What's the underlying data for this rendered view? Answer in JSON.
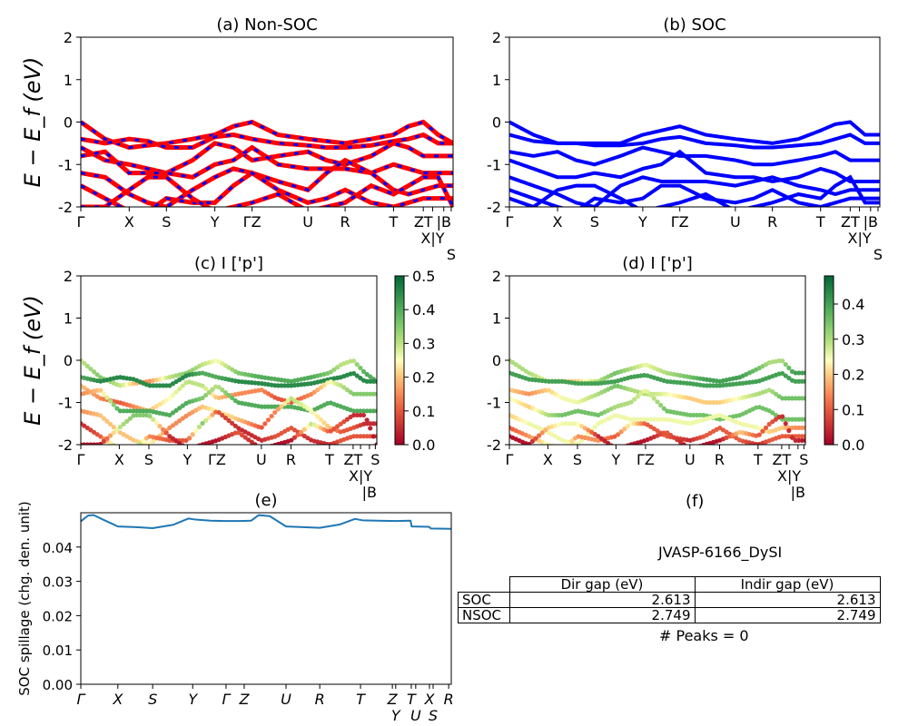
{
  "chart_data": [
    {
      "id": "a",
      "type": "line",
      "title": "(a) Non-SOC",
      "ylabel": "E − E_f (eV)",
      "ylim": [
        -2,
        2
      ],
      "yticks": [
        -2,
        -1,
        0,
        1,
        2
      ],
      "xticks": [
        {
          "k": 0,
          "label": "Γ"
        },
        {
          "k": 0.13,
          "label": "X"
        },
        {
          "k": 0.23,
          "label": "S"
        },
        {
          "k": 0.36,
          "label": "Y"
        },
        {
          "k": 0.46,
          "label": "ΓZ"
        },
        {
          "k": 0.61,
          "label": "U"
        },
        {
          "k": 0.71,
          "label": "R"
        },
        {
          "k": 0.84,
          "label": "T"
        },
        {
          "k": 0.92,
          "label": "ZT"
        },
        {
          "k": 0.945,
          "label": "X|Y"
        },
        {
          "k": 0.975,
          "label": "|B"
        },
        {
          "k": 0.995,
          "label": "S"
        }
      ],
      "colors": {
        "line": "#ff0000",
        "dash": "#0000ff"
      }
    },
    {
      "id": "b",
      "type": "line",
      "title": "(b) SOC",
      "ylim": [
        -2,
        2
      ],
      "yticks": [
        -2,
        -1,
        0,
        1,
        2
      ],
      "xticks": [
        {
          "k": 0,
          "label": "Γ"
        },
        {
          "k": 0.13,
          "label": "X"
        },
        {
          "k": 0.23,
          "label": "S"
        },
        {
          "k": 0.36,
          "label": "Y"
        },
        {
          "k": 0.46,
          "label": "ΓZ"
        },
        {
          "k": 0.61,
          "label": "U"
        },
        {
          "k": 0.71,
          "label": "R"
        },
        {
          "k": 0.84,
          "label": "T"
        },
        {
          "k": 0.92,
          "label": "ZT"
        },
        {
          "k": 0.945,
          "label": "X|Y"
        },
        {
          "k": 0.975,
          "label": "|B"
        },
        {
          "k": 0.995,
          "label": "S"
        }
      ],
      "colors": {
        "line": "#0000ff"
      }
    },
    {
      "id": "c",
      "type": "scatter",
      "title": "(c)  I ['p']",
      "ylabel": "E − E_f (eV)",
      "ylim": [
        -2,
        2
      ],
      "yticks": [
        -2,
        -1,
        0,
        1,
        2
      ],
      "colorbar": {
        "range": [
          0,
          0.5
        ],
        "ticks": [
          "0.0",
          "0.1",
          "0.2",
          "0.3",
          "0.4",
          "0.5"
        ],
        "colormap": "RdYlGn"
      },
      "xticks": [
        {
          "k": 0,
          "label": "Γ"
        },
        {
          "k": 0.13,
          "label": "X"
        },
        {
          "k": 0.23,
          "label": "S"
        },
        {
          "k": 0.36,
          "label": "Y"
        },
        {
          "k": 0.46,
          "label": "ΓZ"
        },
        {
          "k": 0.61,
          "label": "U"
        },
        {
          "k": 0.71,
          "label": "R"
        },
        {
          "k": 0.84,
          "label": "T"
        },
        {
          "k": 0.92,
          "label": "ZT"
        },
        {
          "k": 0.945,
          "label": "X|Y"
        },
        {
          "k": 0.975,
          "label": "|B"
        },
        {
          "k": 0.995,
          "label": "S"
        }
      ]
    },
    {
      "id": "d",
      "type": "scatter",
      "title": "(d) I ['p']",
      "ylim": [
        -2,
        2
      ],
      "yticks": [
        -2,
        -1,
        0,
        1,
        2
      ],
      "colorbar": {
        "range": [
          0,
          0.48
        ],
        "ticks": [
          "0.0",
          "0.1",
          "0.2",
          "0.3",
          "0.4"
        ],
        "colormap": "RdYlGn"
      },
      "xticks": [
        {
          "k": 0,
          "label": "Γ"
        },
        {
          "k": 0.13,
          "label": "X"
        },
        {
          "k": 0.23,
          "label": "S"
        },
        {
          "k": 0.36,
          "label": "Y"
        },
        {
          "k": 0.46,
          "label": "ΓZ"
        },
        {
          "k": 0.61,
          "label": "U"
        },
        {
          "k": 0.71,
          "label": "R"
        },
        {
          "k": 0.84,
          "label": "T"
        },
        {
          "k": 0.92,
          "label": "ZT"
        },
        {
          "k": 0.945,
          "label": "X|Y"
        },
        {
          "k": 0.975,
          "label": "|B"
        },
        {
          "k": 0.995,
          "label": "S"
        }
      ]
    },
    {
      "id": "e",
      "type": "line",
      "title": "(e)",
      "ylabel": "SOC spillage (chg. den. unit)",
      "ylim": [
        0,
        0.05
      ],
      "yticks": [
        "0.00",
        "0.01",
        "0.02",
        "0.03",
        "0.04"
      ],
      "xticks": [
        {
          "k": 0,
          "label": "Γ"
        },
        {
          "k": 0.1,
          "label": "X"
        },
        {
          "k": 0.194,
          "label": "S"
        },
        {
          "k": 0.302,
          "label": "Y"
        },
        {
          "k": 0.392,
          "label": "Γ"
        },
        {
          "k": 0.441,
          "label": "Z"
        },
        {
          "k": 0.554,
          "label": "U"
        },
        {
          "k": 0.645,
          "label": "R"
        },
        {
          "k": 0.755,
          "label": "T"
        },
        {
          "k": 0.841,
          "label": "Z"
        },
        {
          "k": 0.85,
          "label": "Y"
        },
        {
          "k": 0.892,
          "label": "T"
        },
        {
          "k": 0.904,
          "label": "U"
        },
        {
          "k": 0.941,
          "label": "X"
        },
        {
          "k": 0.951,
          "label": "S"
        },
        {
          "k": 0.993,
          "label": "R"
        }
      ],
      "x": [
        0,
        0.02,
        0.035,
        0.06,
        0.1,
        0.15,
        0.194,
        0.25,
        0.29,
        0.31,
        0.35,
        0.39,
        0.43,
        0.46,
        0.48,
        0.51,
        0.554,
        0.6,
        0.645,
        0.7,
        0.74,
        0.76,
        0.8,
        0.85,
        0.89,
        0.893,
        0.94,
        0.945,
        1
      ],
      "values": [
        0.0475,
        0.0492,
        0.0493,
        0.048,
        0.046,
        0.0458,
        0.0455,
        0.0465,
        0.0483,
        0.048,
        0.0477,
        0.0476,
        0.0476,
        0.0477,
        0.0493,
        0.049,
        0.046,
        0.0458,
        0.0456,
        0.0466,
        0.0482,
        0.0478,
        0.0477,
        0.0476,
        0.0477,
        0.046,
        0.0459,
        0.0454,
        0.0453
      ],
      "color": "#1f77b4"
    }
  ],
  "bands": {
    "k": [
      0,
      0.065,
      0.13,
      0.18,
      0.23,
      0.3,
      0.36,
      0.41,
      0.46,
      0.53,
      0.61,
      0.66,
      0.71,
      0.78,
      0.84,
      0.88,
      0.92,
      0.96,
      1
    ],
    "nsoc": [
      [
        0,
        -0.4,
        -0.6,
        -0.55,
        -0.5,
        -0.4,
        -0.3,
        -0.1,
        0,
        -0.3,
        -0.4,
        -0.45,
        -0.5,
        -0.4,
        -0.3,
        -0.1,
        0,
        -0.3,
        -0.5
      ],
      [
        -0.4,
        -0.5,
        -0.4,
        -0.45,
        -0.6,
        -0.6,
        -0.35,
        -0.3,
        -0.4,
        -0.5,
        -0.55,
        -0.6,
        -0.6,
        -0.55,
        -0.45,
        -0.4,
        -0.3,
        -0.5,
        -0.5
      ],
      [
        -0.6,
        -0.9,
        -1.0,
        -1.1,
        -1.2,
        -0.9,
        -0.5,
        -0.6,
        -0.9,
        -0.8,
        -0.7,
        -0.9,
        -1.0,
        -0.8,
        -0.5,
        -0.6,
        -0.8,
        -0.8,
        -0.8
      ],
      [
        -0.8,
        -0.7,
        -1.2,
        -1.2,
        -1.2,
        -1.3,
        -1.0,
        -0.9,
        -0.6,
        -1.0,
        -1.1,
        -1.1,
        -1.1,
        -1.2,
        -1.0,
        -1.1,
        -1.2,
        -1.2,
        -1.2
      ],
      [
        -1.2,
        -1.3,
        -1.7,
        -1.9,
        -2.0,
        -1.6,
        -1.3,
        -1.1,
        -1.2,
        -1.4,
        -1.6,
        -1.2,
        -0.9,
        -1.2,
        -1.6,
        -1.7,
        -1.6,
        -1.5,
        -1.5
      ],
      [
        -1.5,
        -1.8,
        -2.1,
        -2.1,
        -1.8,
        -1.9,
        -1.9,
        -1.5,
        -1.2,
        -1.6,
        -1.9,
        -1.8,
        -1.6,
        -1.9,
        -2.0,
        -1.9,
        -1.8,
        -1.8,
        -1.8
      ],
      [
        -2.0,
        -2.0,
        -1.6,
        -1.3,
        -1.3,
        -1.8,
        -2.1,
        -2.0,
        -1.9,
        -1.7,
        -2.1,
        -2.0,
        -1.9,
        -1.5,
        -1.7,
        -1.5,
        -1.3,
        -1.3,
        -2.0
      ]
    ],
    "soc": [
      [
        0,
        -0.3,
        -0.5,
        -0.5,
        -0.5,
        -0.5,
        -0.3,
        -0.2,
        -0.1,
        -0.3,
        -0.4,
        -0.45,
        -0.5,
        -0.4,
        -0.2,
        -0.05,
        0,
        -0.3,
        -0.3
      ],
      [
        -0.3,
        -0.45,
        -0.5,
        -0.5,
        -0.55,
        -0.55,
        -0.5,
        -0.4,
        -0.35,
        -0.5,
        -0.55,
        -0.6,
        -0.6,
        -0.55,
        -0.5,
        -0.4,
        -0.3,
        -0.5,
        -0.5
      ],
      [
        -0.7,
        -0.8,
        -0.7,
        -0.9,
        -1.0,
        -0.8,
        -0.6,
        -0.7,
        -0.8,
        -0.8,
        -0.9,
        -1.0,
        -1.0,
        -0.9,
        -0.8,
        -0.7,
        -0.9,
        -0.9,
        -0.9
      ],
      [
        -0.9,
        -1.1,
        -1.3,
        -1.3,
        -1.2,
        -1.3,
        -1.1,
        -1.0,
        -0.7,
        -1.2,
        -1.3,
        -1.3,
        -1.4,
        -1.3,
        -1.1,
        -1.2,
        -1.4,
        -1.4,
        -1.4
      ],
      [
        -1.3,
        -1.5,
        -1.7,
        -1.9,
        -2.0,
        -1.5,
        -1.3,
        -1.4,
        -1.4,
        -1.4,
        -1.5,
        -1.4,
        -1.3,
        -1.5,
        -1.6,
        -1.7,
        -1.6,
        -1.6,
        -1.6
      ],
      [
        -1.6,
        -1.8,
        -2.0,
        -2.1,
        -1.8,
        -1.9,
        -1.8,
        -1.5,
        -1.5,
        -1.8,
        -1.9,
        -1.8,
        -1.6,
        -1.9,
        -2.0,
        -1.9,
        -1.8,
        -1.8,
        -1.8
      ],
      [
        -1.8,
        -2.0,
        -1.6,
        -1.5,
        -1.5,
        -1.8,
        -2.1,
        -2.0,
        -1.9,
        -1.7,
        -2.1,
        -2.0,
        -1.9,
        -1.7,
        -1.8,
        -1.5,
        -1.3,
        -1.9,
        -1.9
      ]
    ],
    "weights_nsoc": [
      [
        0.3,
        0.35,
        0.3,
        0.2,
        0.15,
        0.3,
        0.35,
        0.3,
        0.25,
        0.35,
        0.4,
        0.4,
        0.4,
        0.4,
        0.35,
        0.3,
        0.3,
        0.4,
        0.4
      ],
      [
        0.4,
        0.45,
        0.45,
        0.45,
        0.45,
        0.45,
        0.45,
        0.4,
        0.4,
        0.45,
        0.45,
        0.45,
        0.45,
        0.45,
        0.45,
        0.45,
        0.45,
        0.45,
        0.45
      ],
      [
        0.2,
        0.15,
        0.1,
        0.15,
        0.2,
        0.25,
        0.3,
        0.3,
        0.2,
        0.15,
        0.15,
        0.1,
        0.1,
        0.15,
        0.25,
        0.3,
        0.35,
        0.35,
        0.35
      ],
      [
        0.15,
        0.2,
        0.4,
        0.4,
        0.4,
        0.4,
        0.4,
        0.35,
        0.3,
        0.4,
        0.4,
        0.4,
        0.4,
        0.4,
        0.4,
        0.4,
        0.4,
        0.4,
        0.4
      ],
      [
        0.15,
        0.2,
        0.2,
        0.2,
        0.25,
        0.15,
        0.15,
        0.2,
        0.25,
        0.2,
        0.1,
        0.15,
        0.3,
        0.25,
        0.2,
        0.1,
        0.1,
        0.05,
        0.05
      ],
      [
        0.05,
        0.1,
        0.35,
        0.4,
        0.15,
        0.1,
        0.1,
        0.35,
        0.1,
        0.05,
        0.05,
        0.1,
        0.1,
        0.05,
        0.05,
        0.1,
        0.1,
        0.1,
        0.1
      ],
      [
        0.02,
        0.02,
        0.3,
        0.35,
        0.35,
        0.05,
        0.02,
        0.02,
        0.02,
        0.1,
        0.02,
        0.02,
        0.02,
        0.3,
        0.1,
        0.1,
        0.05,
        0.05,
        0.02
      ]
    ],
    "weights_soc": [
      [
        0.3,
        0.3,
        0.25,
        0.2,
        0.2,
        0.3,
        0.35,
        0.3,
        0.25,
        0.3,
        0.35,
        0.4,
        0.4,
        0.4,
        0.35,
        0.3,
        0.3,
        0.4,
        0.4
      ],
      [
        0.4,
        0.4,
        0.4,
        0.4,
        0.4,
        0.4,
        0.4,
        0.4,
        0.4,
        0.4,
        0.4,
        0.4,
        0.4,
        0.4,
        0.4,
        0.4,
        0.4,
        0.4,
        0.4
      ],
      [
        0.2,
        0.15,
        0.2,
        0.25,
        0.25,
        0.3,
        0.35,
        0.3,
        0.3,
        0.25,
        0.2,
        0.2,
        0.2,
        0.25,
        0.3,
        0.3,
        0.35,
        0.35,
        0.35
      ],
      [
        0.25,
        0.2,
        0.3,
        0.35,
        0.35,
        0.35,
        0.3,
        0.3,
        0.25,
        0.35,
        0.35,
        0.35,
        0.35,
        0.35,
        0.35,
        0.35,
        0.35,
        0.35,
        0.35
      ],
      [
        0.2,
        0.25,
        0.25,
        0.25,
        0.25,
        0.25,
        0.25,
        0.25,
        0.25,
        0.25,
        0.25,
        0.25,
        0.25,
        0.25,
        0.25,
        0.2,
        0.2,
        0.15,
        0.15
      ],
      [
        0.1,
        0.15,
        0.25,
        0.3,
        0.15,
        0.15,
        0.1,
        0.25,
        0.1,
        0.1,
        0.05,
        0.1,
        0.1,
        0.1,
        0.05,
        0.1,
        0.1,
        0.1,
        0.1
      ],
      [
        0.02,
        0.02,
        0.2,
        0.25,
        0.25,
        0.05,
        0.02,
        0.02,
        0.02,
        0.1,
        0.02,
        0.02,
        0.02,
        0.2,
        0.1,
        0.1,
        0.05,
        0.05,
        0.02
      ]
    ]
  },
  "panel_f": {
    "title": "(f)",
    "material": "JVASP-6166_DySI",
    "columns": [
      "",
      "Dir gap (eV)",
      "Indir gap (eV)"
    ],
    "rows": [
      [
        "SOC",
        "2.613",
        "2.613"
      ],
      [
        "NSOC",
        "2.749",
        "2.749"
      ]
    ],
    "peaks": "# Peaks = 0"
  }
}
